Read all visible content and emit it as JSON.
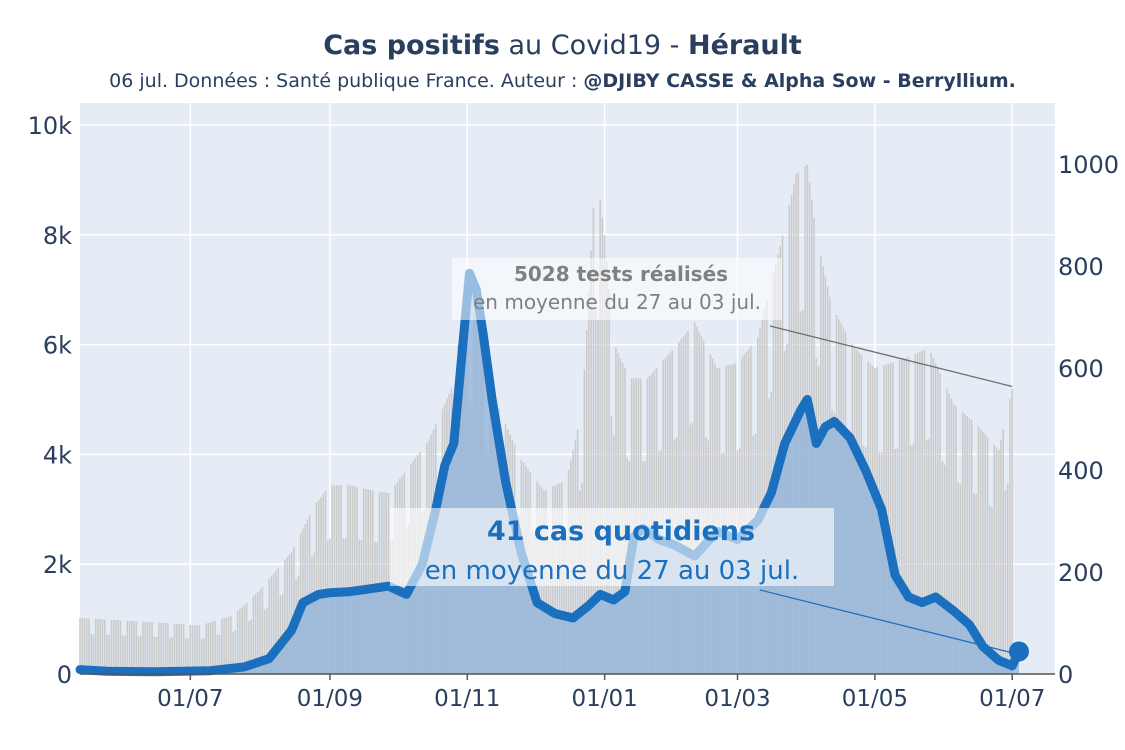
{
  "title": {
    "part1_bold": "Cas positifs",
    "part2": " au Covid19 - ",
    "part3_bold": "Hérault"
  },
  "subtitle": {
    "text": "06 jul. Données : Santé publique France. Auteur : ",
    "bold": "@DJIBY CASSE & Alpha Sow - Berryllium."
  },
  "colors": {
    "cases_line": "#1a6fbf",
    "cases_fill": "#8fb3d9",
    "tests_bars": "#c8c8c8",
    "plot_bg": "#e5ecf6",
    "axis_text": "#2a3f5f",
    "tests_annotation": "#808080"
  },
  "annotations": {
    "tests_bold": "5028 tests réalisés",
    "tests_sub": "en moyenne du 27 au 03 jul.",
    "cases_bold": "41 cas quotidiens",
    "cases_sub": "en moyenne du 27 au 03 jul."
  },
  "chart_data": {
    "type": "line",
    "title": "Cas positifs au Covid19 - Hérault",
    "x_tick_labels": [
      "01/07",
      "01/09",
      "01/11",
      "01/01",
      "01/03",
      "01/05",
      "01/07"
    ],
    "x_tick_dates": [
      "2020-07-01",
      "2020-09-01",
      "2020-11-01",
      "2021-01-01",
      "2021-03-01",
      "2021-05-01",
      "2021-07-01"
    ],
    "xlim": [
      "2020-05-13",
      "2021-07-20"
    ],
    "y_left": {
      "ticks": [
        0,
        2000,
        4000,
        6000,
        8000,
        10000
      ],
      "tick_labels": [
        "0",
        "2k",
        "4k",
        "6k",
        "8k",
        "10k"
      ],
      "range": [
        0,
        10400
      ]
    },
    "y_right": {
      "ticks": [
        0,
        200,
        400,
        600,
        800,
        1000
      ],
      "tick_labels": [
        "0",
        "200",
        "400",
        "600",
        "800",
        "1000"
      ],
      "range": [
        0,
        1120
      ]
    },
    "grid": true,
    "series": [
      {
        "axis": "right",
        "style": "bars",
        "points": [
          [
            "2020-05-13",
            110
          ],
          [
            "2020-06-01",
            105
          ],
          [
            "2020-06-20",
            100
          ],
          [
            "2020-07-05",
            95
          ],
          [
            "2020-07-20",
            115
          ],
          [
            "2020-08-01",
            165
          ],
          [
            "2020-08-15",
            240
          ],
          [
            "2020-08-25",
            330
          ],
          [
            "2020-09-01",
            370
          ],
          [
            "2020-09-10",
            370
          ],
          [
            "2020-09-20",
            360
          ],
          [
            "2020-09-27",
            355
          ],
          [
            "2020-10-05",
            400
          ],
          [
            "2020-10-15",
            460
          ],
          [
            "2020-10-25",
            560
          ],
          [
            "2020-11-01",
            760
          ],
          [
            "2020-11-07",
            660
          ],
          [
            "2020-11-15",
            520
          ],
          [
            "2020-11-25",
            420
          ],
          [
            "2020-12-05",
            360
          ],
          [
            "2020-12-15",
            380
          ],
          [
            "2020-12-22",
            520
          ],
          [
            "2020-12-26",
            830
          ],
          [
            "2020-12-28",
            1000
          ],
          [
            "2021-01-01",
            860
          ],
          [
            "2021-01-05",
            650
          ],
          [
            "2021-01-12",
            580
          ],
          [
            "2021-01-20",
            580
          ],
          [
            "2021-02-01",
            640
          ],
          [
            "2021-02-10",
            690
          ],
          [
            "2021-02-20",
            600
          ],
          [
            "2021-03-01",
            610
          ],
          [
            "2021-03-10",
            660
          ],
          [
            "2021-03-20",
            840
          ],
          [
            "2021-03-27",
            980
          ],
          [
            "2021-04-01",
            1000
          ],
          [
            "2021-04-05",
            860
          ],
          [
            "2021-04-12",
            720
          ],
          [
            "2021-04-22",
            640
          ],
          [
            "2021-05-01",
            600
          ],
          [
            "2021-05-15",
            620
          ],
          [
            "2021-05-25",
            640
          ],
          [
            "2021-06-05",
            530
          ],
          [
            "2021-06-15",
            490
          ],
          [
            "2021-06-25",
            440
          ],
          [
            "2021-07-01",
            560
          ]
        ]
      },
      {
        "axis": "left",
        "style": "line",
        "points": [
          [
            "2020-05-13",
            80
          ],
          [
            "2020-05-25",
            50
          ],
          [
            "2020-06-15",
            40
          ],
          [
            "2020-07-10",
            60
          ],
          [
            "2020-07-25",
            130
          ],
          [
            "2020-08-05",
            280
          ],
          [
            "2020-08-15",
            800
          ],
          [
            "2020-08-20",
            1300
          ],
          [
            "2020-08-27",
            1450
          ],
          [
            "2020-09-01",
            1480
          ],
          [
            "2020-09-10",
            1500
          ],
          [
            "2020-09-20",
            1560
          ],
          [
            "2020-09-27",
            1600
          ],
          [
            "2020-10-05",
            1450
          ],
          [
            "2020-10-12",
            2000
          ],
          [
            "2020-10-18",
            3000
          ],
          [
            "2020-10-22",
            3800
          ],
          [
            "2020-10-26",
            4200
          ],
          [
            "2020-10-30",
            6000
          ],
          [
            "2020-11-02",
            7300
          ],
          [
            "2020-11-05",
            7000
          ],
          [
            "2020-11-08",
            6200
          ],
          [
            "2020-11-12",
            5000
          ],
          [
            "2020-11-18",
            3500
          ],
          [
            "2020-11-25",
            2200
          ],
          [
            "2020-12-02",
            1300
          ],
          [
            "2020-12-10",
            1100
          ],
          [
            "2020-12-18",
            1020
          ],
          [
            "2020-12-25",
            1250
          ],
          [
            "2020-12-30",
            1450
          ],
          [
            "2021-01-05",
            1350
          ],
          [
            "2021-01-10",
            1500
          ],
          [
            "2021-01-14",
            2500
          ],
          [
            "2021-01-18",
            2650
          ],
          [
            "2021-01-25",
            2450
          ],
          [
            "2021-02-01",
            2350
          ],
          [
            "2021-02-10",
            2150
          ],
          [
            "2021-02-20",
            2600
          ],
          [
            "2021-03-01",
            2450
          ],
          [
            "2021-03-10",
            2800
          ],
          [
            "2021-03-16",
            3300
          ],
          [
            "2021-03-22",
            4200
          ],
          [
            "2021-03-29",
            4800
          ],
          [
            "2021-04-01",
            5000
          ],
          [
            "2021-04-05",
            4200
          ],
          [
            "2021-04-09",
            4500
          ],
          [
            "2021-04-13",
            4600
          ],
          [
            "2021-04-20",
            4300
          ],
          [
            "2021-04-27",
            3700
          ],
          [
            "2021-05-04",
            3000
          ],
          [
            "2021-05-10",
            1800
          ],
          [
            "2021-05-16",
            1400
          ],
          [
            "2021-05-22",
            1300
          ],
          [
            "2021-05-28",
            1400
          ],
          [
            "2021-06-05",
            1150
          ],
          [
            "2021-06-12",
            900
          ],
          [
            "2021-06-18",
            500
          ],
          [
            "2021-06-25",
            250
          ],
          [
            "2021-07-01",
            150
          ],
          [
            "2021-07-04",
            410
          ]
        ]
      }
    ]
  }
}
